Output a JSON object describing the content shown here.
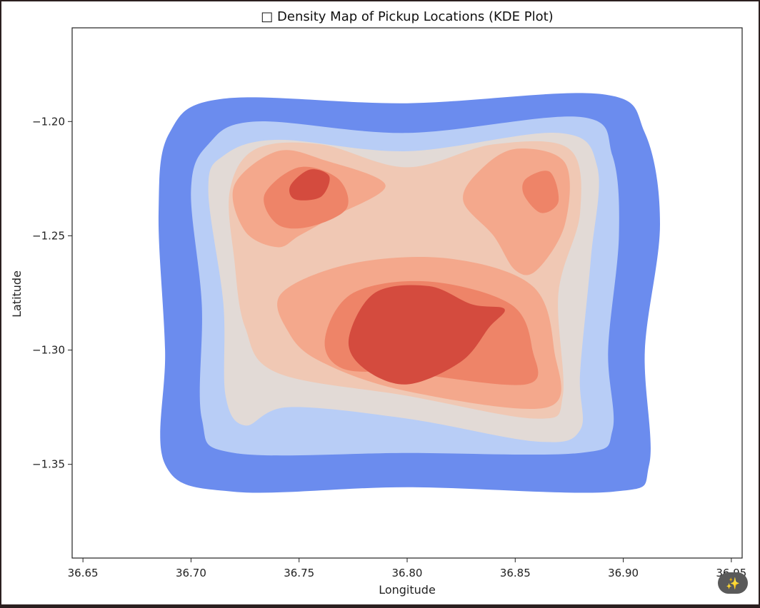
{
  "chart_data": {
    "type": "kde-contour",
    "title": "□ Density Map of Pickup Locations (KDE Plot)",
    "xlabel": "Longitude",
    "ylabel": "Latitude",
    "xlim": [
      36.645,
      36.955
    ],
    "ylim": [
      -1.391,
      -1.159
    ],
    "xticks": [
      36.65,
      36.7,
      36.75,
      36.8,
      36.85,
      36.9,
      36.95
    ],
    "xtick_labels": [
      "36.65",
      "36.70",
      "36.75",
      "36.80",
      "36.85",
      "36.90",
      "36.95"
    ],
    "yticks": [
      -1.2,
      -1.25,
      -1.3,
      -1.35
    ],
    "ytick_labels": [
      "−1.20",
      "−1.25",
      "−1.30",
      "−1.35"
    ],
    "colormap": "coolwarm",
    "grid": false,
    "levels": [
      {
        "level": 1,
        "color": "#6b8cee",
        "points": [
          [
            36.685,
            -1.24
          ],
          [
            36.69,
            -1.205
          ],
          [
            36.715,
            -1.19
          ],
          [
            36.8,
            -1.192
          ],
          [
            36.89,
            -1.188
          ],
          [
            36.91,
            -1.205
          ],
          [
            36.917,
            -1.245
          ],
          [
            36.91,
            -1.3
          ],
          [
            36.912,
            -1.35
          ],
          [
            36.895,
            -1.362
          ],
          [
            36.8,
            -1.36
          ],
          [
            36.72,
            -1.362
          ],
          [
            36.688,
            -1.35
          ],
          [
            36.688,
            -1.3
          ]
        ]
      },
      {
        "level": 2,
        "color": "#b8cdf6",
        "points": [
          [
            36.7,
            -1.23
          ],
          [
            36.708,
            -1.21
          ],
          [
            36.73,
            -1.2
          ],
          [
            36.8,
            -1.205
          ],
          [
            36.88,
            -1.198
          ],
          [
            36.895,
            -1.215
          ],
          [
            36.898,
            -1.25
          ],
          [
            36.893,
            -1.3
          ],
          [
            36.895,
            -1.335
          ],
          [
            36.88,
            -1.345
          ],
          [
            36.8,
            -1.345
          ],
          [
            36.72,
            -1.345
          ],
          [
            36.705,
            -1.33
          ],
          [
            36.705,
            -1.28
          ]
        ]
      },
      {
        "level": 3,
        "color": "#e2dad6",
        "points": [
          [
            36.708,
            -1.23
          ],
          [
            36.715,
            -1.215
          ],
          [
            36.74,
            -1.208
          ],
          [
            36.8,
            -1.213
          ],
          [
            36.87,
            -1.205
          ],
          [
            36.888,
            -1.22
          ],
          [
            36.885,
            -1.26
          ],
          [
            36.88,
            -1.31
          ],
          [
            36.88,
            -1.335
          ],
          [
            36.86,
            -1.34
          ],
          [
            36.8,
            -1.33
          ],
          [
            36.745,
            -1.325
          ],
          [
            36.725,
            -1.333
          ],
          [
            36.716,
            -1.32
          ],
          [
            36.715,
            -1.28
          ]
        ]
      },
      {
        "level": 4,
        "color": "#f0c8b4",
        "points": [
          [
            36.718,
            -1.23
          ],
          [
            36.73,
            -1.212
          ],
          [
            36.76,
            -1.21
          ],
          [
            36.8,
            -1.22
          ],
          [
            36.84,
            -1.21
          ],
          [
            36.875,
            -1.212
          ],
          [
            36.88,
            -1.24
          ],
          [
            36.87,
            -1.275
          ],
          [
            36.872,
            -1.32
          ],
          [
            36.86,
            -1.33
          ],
          [
            36.8,
            -1.32
          ],
          [
            36.74,
            -1.31
          ],
          [
            36.725,
            -1.29
          ],
          [
            36.72,
            -1.26
          ]
        ]
      },
      {
        "level": 5,
        "color": "#f4a88c",
        "points": [
          [
            36.72,
            -1.228
          ],
          [
            36.74,
            -1.213
          ],
          [
            36.762,
            -1.217
          ],
          [
            36.79,
            -1.228
          ],
          [
            36.765,
            -1.242
          ],
          [
            36.75,
            -1.25
          ],
          [
            36.74,
            -1.255
          ],
          [
            36.725,
            -1.248
          ]
        ]
      },
      {
        "level": 5,
        "color": "#f4a88c",
        "points": [
          [
            36.833,
            -1.222
          ],
          [
            36.85,
            -1.212
          ],
          [
            36.873,
            -1.218
          ],
          [
            36.873,
            -1.245
          ],
          [
            36.86,
            -1.265
          ],
          [
            36.85,
            -1.265
          ],
          [
            36.84,
            -1.25
          ],
          [
            36.826,
            -1.235
          ]
        ]
      },
      {
        "level": 5,
        "color": "#f4a88c",
        "points": [
          [
            36.742,
            -1.275
          ],
          [
            36.775,
            -1.262
          ],
          [
            36.82,
            -1.26
          ],
          [
            36.858,
            -1.272
          ],
          [
            36.868,
            -1.3
          ],
          [
            36.865,
            -1.325
          ],
          [
            36.8,
            -1.318
          ],
          [
            36.76,
            -1.305
          ],
          [
            36.745,
            -1.292
          ]
        ]
      },
      {
        "level": 6,
        "color": "#ee8468",
        "points": [
          [
            36.734,
            -1.232
          ],
          [
            36.75,
            -1.22
          ],
          [
            36.768,
            -1.225
          ],
          [
            36.772,
            -1.238
          ],
          [
            36.755,
            -1.246
          ],
          [
            36.74,
            -1.245
          ]
        ]
      },
      {
        "level": 6,
        "color": "#ee8468",
        "points": [
          [
            36.855,
            -1.225
          ],
          [
            36.866,
            -1.222
          ],
          [
            36.87,
            -1.235
          ],
          [
            36.862,
            -1.24
          ],
          [
            36.854,
            -1.232
          ]
        ]
      },
      {
        "level": 6,
        "color": "#ee8468",
        "points": [
          [
            36.762,
            -1.295
          ],
          [
            36.775,
            -1.275
          ],
          [
            36.81,
            -1.27
          ],
          [
            36.848,
            -1.28
          ],
          [
            36.858,
            -1.3
          ],
          [
            36.855,
            -1.315
          ],
          [
            36.8,
            -1.31
          ],
          [
            36.77,
            -1.308
          ]
        ]
      },
      {
        "level": 7,
        "color": "#d44b3e",
        "points": [
          [
            36.746,
            -1.228
          ],
          [
            36.755,
            -1.221
          ],
          [
            36.764,
            -1.224
          ],
          [
            36.76,
            -1.233
          ],
          [
            36.748,
            -1.234
          ]
        ]
      },
      {
        "level": 7,
        "color": "#d44b3e",
        "points": [
          [
            36.773,
            -1.295
          ],
          [
            36.785,
            -1.275
          ],
          [
            36.81,
            -1.272
          ],
          [
            36.83,
            -1.28
          ],
          [
            36.845,
            -1.282
          ],
          [
            36.838,
            -1.29
          ],
          [
            36.825,
            -1.305
          ],
          [
            36.8,
            -1.315
          ],
          [
            36.78,
            -1.308
          ]
        ]
      }
    ]
  },
  "toolbar": {
    "magic_icon_glyph": "✨"
  }
}
